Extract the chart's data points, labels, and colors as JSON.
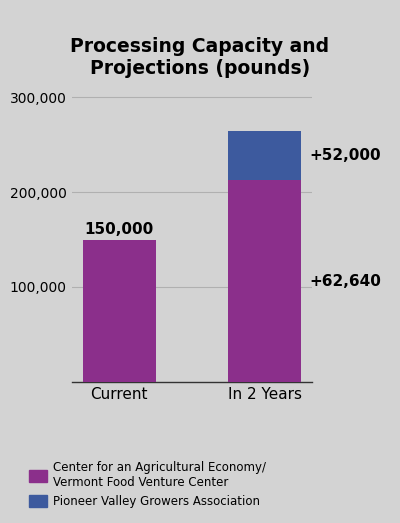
{
  "title": "Processing Capacity and\nProjections (pounds)",
  "categories": [
    "Current",
    "In 2 Years"
  ],
  "purple_values": [
    150000,
    212640
  ],
  "blue_values": [
    0,
    52000
  ],
  "purple_color": "#8b2f8b",
  "blue_color": "#3d5a9e",
  "background_color": "#d3d3d3",
  "ylim": [
    0,
    320000
  ],
  "yticks": [
    100000,
    200000,
    300000
  ],
  "bar_label_current": "150,000",
  "annotation_plus62": "+62,640",
  "annotation_plus52": "+52,000",
  "legend_purple": "Center for an Agricultural Economy/\nVermont Food Venture Center",
  "legend_blue": "Pioneer Valley Growers Association",
  "title_fontsize": 13.5,
  "tick_fontsize": 10,
  "annotation_fontsize": 11,
  "bar_label_fontsize": 11
}
